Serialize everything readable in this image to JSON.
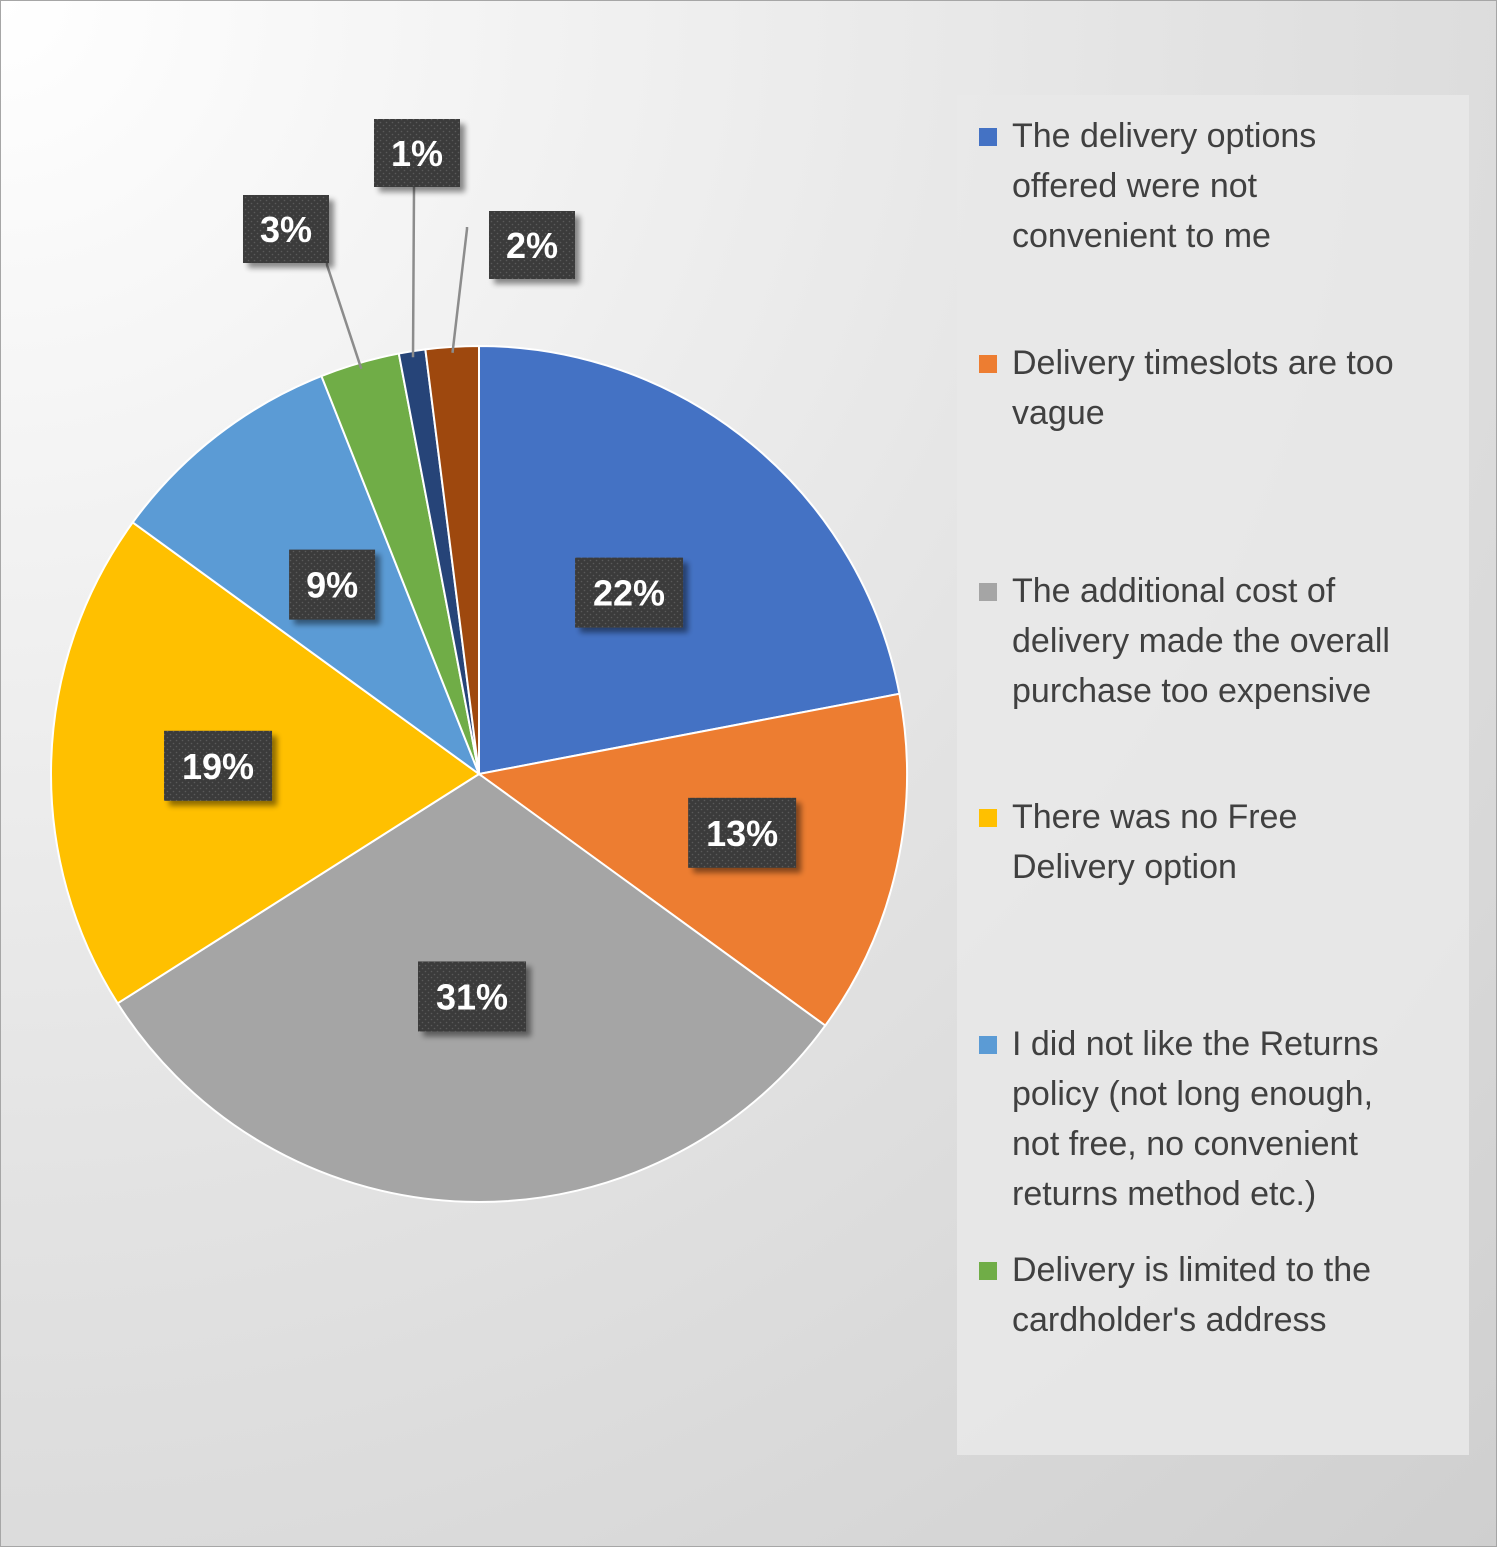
{
  "chart_data": {
    "type": "pie",
    "title": "",
    "legend_position": "right",
    "slices": [
      {
        "label": "The delivery options offered were not convenient to me",
        "value": 22,
        "display": "22%",
        "color": "#4472C4",
        "in_legend": true
      },
      {
        "label": "Delivery timeslots are too vague",
        "value": 13,
        "display": "13%",
        "color": "#ED7D31",
        "in_legend": true
      },
      {
        "label": "The additional cost of delivery made the overall purchase too expensive",
        "value": 31,
        "display": "31%",
        "color": "#A5A5A5",
        "in_legend": true
      },
      {
        "label": "There was no Free Delivery option",
        "value": 19,
        "display": "19%",
        "color": "#FFC000",
        "in_legend": true
      },
      {
        "label": "I did not like the Returns policy (not long enough, not free, no convenient returns method etc.)",
        "value": 9,
        "display": "9%",
        "color": "#5B9BD5",
        "in_legend": true
      },
      {
        "label": "Delivery is limited to the cardholder's address",
        "value": 3,
        "display": "3%",
        "color": "#70AD47",
        "in_legend": true
      },
      {
        "label": "",
        "value": 1,
        "display": "1%",
        "color": "#264478",
        "in_legend": false
      },
      {
        "label": "",
        "value": 2,
        "display": "2%",
        "color": "#9E480E",
        "in_legend": false
      }
    ]
  },
  "legend": {
    "items": [
      {
        "lines": [
          "The delivery options",
          "offered were not",
          "convenient to me"
        ],
        "color": "#4472C4"
      },
      {
        "lines": [
          "Delivery timeslots are too",
          "vague"
        ],
        "color": "#ED7D31"
      },
      {
        "lines": [
          "The additional cost of",
          "delivery made the overall",
          "purchase too expensive"
        ],
        "color": "#A5A5A5"
      },
      {
        "lines": [
          "There was no Free",
          "Delivery option"
        ],
        "color": "#FFC000"
      },
      {
        "lines": [
          "I did not like the Returns",
          "policy (not long enough,",
          "not free, no convenient",
          "returns method etc.)"
        ],
        "color": "#5B9BD5"
      },
      {
        "lines": [
          "Delivery is limited to the",
          "cardholder's address"
        ],
        "color": "#70AD47"
      }
    ]
  }
}
